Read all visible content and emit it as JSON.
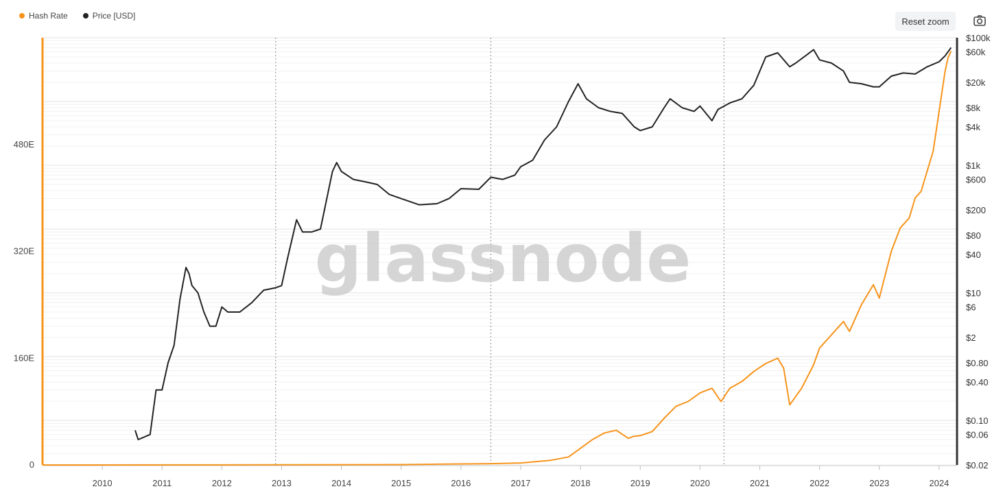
{
  "legend": [
    {
      "label": "Hash Rate",
      "color": "#f7931a"
    },
    {
      "label": "Price [USD]",
      "color": "#222222"
    }
  ],
  "toolbar": {
    "reset_label": "Reset zoom",
    "camera_icon": "camera-icon"
  },
  "watermark": "glassnode",
  "chart_data": {
    "type": "line",
    "x_ticks": [
      "2010",
      "2011",
      "2012",
      "2013",
      "2014",
      "2015",
      "2016",
      "2017",
      "2018",
      "2019",
      "2020",
      "2021",
      "2022",
      "2023",
      "2024"
    ],
    "y_left": {
      "ticks": [
        "0",
        "160E",
        "320E",
        "480E"
      ],
      "range": [
        0,
        640
      ],
      "scale": "linear"
    },
    "y_right": {
      "ticks": [
        "$0.02",
        "$0.06",
        "$0.10",
        "$0.40",
        "$0.80",
        "$2",
        "$6",
        "$10",
        "$40",
        "$80",
        "$200",
        "$600",
        "$1k",
        "$4k",
        "$8k",
        "$20k",
        "$60k",
        "$100k"
      ],
      "range": [
        0.02,
        100000
      ],
      "scale": "log"
    },
    "halving_lines": [
      2012.9,
      2016.5,
      2020.4
    ],
    "grid": "horizontal",
    "legend_position": "top-left",
    "series": [
      {
        "name": "Hash Rate",
        "axis": "left",
        "color": "#f7931a",
        "x": [
          2009.0,
          2012.0,
          2015.0,
          2016.0,
          2016.5,
          2017.0,
          2017.5,
          2017.8,
          2018.0,
          2018.2,
          2018.4,
          2018.6,
          2018.8,
          2018.9,
          2019.0,
          2019.2,
          2019.4,
          2019.6,
          2019.8,
          2020.0,
          2020.2,
          2020.35,
          2020.5,
          2020.7,
          2020.9,
          2021.1,
          2021.3,
          2021.4,
          2021.5,
          2021.7,
          2021.9,
          2022.0,
          2022.2,
          2022.4,
          2022.5,
          2022.7,
          2022.9,
          2023.0,
          2023.2,
          2023.35,
          2023.5,
          2023.6,
          2023.7,
          2023.8,
          2023.9,
          2024.0,
          2024.1,
          2024.15,
          2024.2
        ],
        "values": [
          0,
          0.1,
          0.5,
          1.5,
          2,
          3,
          7,
          12,
          25,
          38,
          48,
          52,
          40,
          43,
          44,
          50,
          70,
          88,
          95,
          108,
          115,
          95,
          115,
          125,
          140,
          152,
          160,
          145,
          90,
          115,
          150,
          175,
          195,
          215,
          200,
          240,
          270,
          250,
          320,
          355,
          370,
          400,
          410,
          440,
          470,
          530,
          590,
          610,
          620
        ]
      },
      {
        "name": "Price [USD]",
        "axis": "right",
        "color": "#222222",
        "x": [
          2010.55,
          2010.6,
          2010.8,
          2010.9,
          2011.0,
          2011.1,
          2011.2,
          2011.3,
          2011.4,
          2011.45,
          2011.5,
          2011.6,
          2011.7,
          2011.8,
          2011.9,
          2012.0,
          2012.1,
          2012.3,
          2012.5,
          2012.7,
          2012.9,
          2013.0,
          2013.1,
          2013.25,
          2013.35,
          2013.5,
          2013.65,
          2013.85,
          2013.92,
          2014.0,
          2014.2,
          2014.4,
          2014.6,
          2014.8,
          2015.0,
          2015.3,
          2015.6,
          2015.8,
          2016.0,
          2016.3,
          2016.5,
          2016.7,
          2016.9,
          2017.0,
          2017.2,
          2017.4,
          2017.6,
          2017.8,
          2017.96,
          2018.1,
          2018.3,
          2018.5,
          2018.7,
          2018.9,
          2019.0,
          2019.2,
          2019.4,
          2019.5,
          2019.7,
          2019.9,
          2020.0,
          2020.2,
          2020.3,
          2020.5,
          2020.7,
          2020.9,
          2021.0,
          2021.1,
          2021.3,
          2021.5,
          2021.6,
          2021.8,
          2021.9,
          2022.0,
          2022.2,
          2022.4,
          2022.5,
          2022.7,
          2022.9,
          2023.0,
          2023.2,
          2023.4,
          2023.6,
          2023.8,
          2024.0,
          2024.1,
          2024.2
        ],
        "values": [
          0.07,
          0.05,
          0.06,
          0.3,
          0.3,
          0.8,
          1.5,
          8,
          25,
          20,
          13,
          10,
          5,
          3,
          3,
          6,
          5,
          5,
          7,
          11,
          12,
          13,
          35,
          140,
          90,
          90,
          100,
          800,
          1100,
          800,
          600,
          550,
          500,
          350,
          300,
          240,
          250,
          300,
          430,
          420,
          650,
          600,
          700,
          950,
          1200,
          2500,
          4000,
          10000,
          19000,
          11000,
          8000,
          7000,
          6500,
          4000,
          3500,
          4000,
          8000,
          11000,
          8000,
          7000,
          8500,
          5000,
          7500,
          9500,
          11000,
          18000,
          30000,
          50000,
          58000,
          35000,
          40000,
          55000,
          65000,
          45000,
          40000,
          30000,
          20000,
          19000,
          17000,
          17000,
          25000,
          28000,
          27000,
          35000,
          42000,
          52000,
          70000
        ]
      }
    ]
  }
}
